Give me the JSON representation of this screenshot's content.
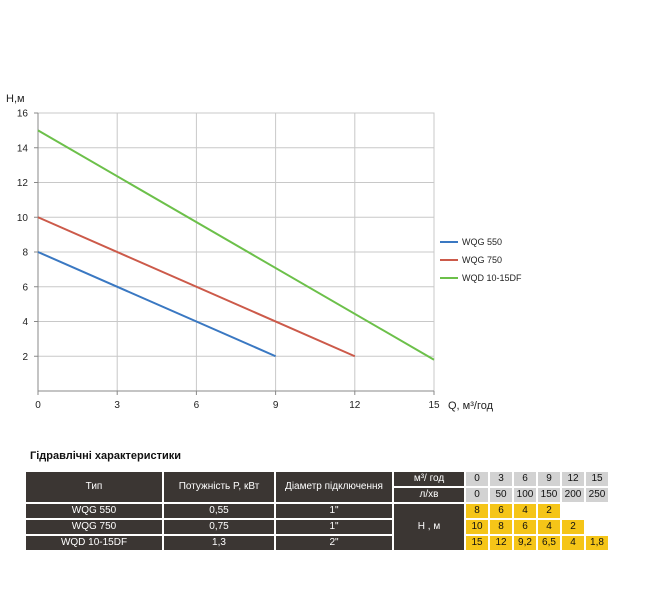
{
  "chart_data": {
    "type": "line",
    "xlabel": "Q,  м³/год",
    "ylabel": "H,м",
    "xlim": [
      0,
      15
    ],
    "ylim": [
      0,
      16
    ],
    "xticks": [
      0,
      3,
      6,
      9,
      12,
      15
    ],
    "yticks": [
      2,
      4,
      6,
      8,
      10,
      12,
      14,
      16
    ],
    "grid": true,
    "legend_position": "right",
    "series": [
      {
        "name": "WQG 550",
        "color": "#3a78c2",
        "x": [
          0,
          9
        ],
        "y": [
          8,
          2
        ]
      },
      {
        "name": "WQG 750",
        "color": "#cc5a4a",
        "x": [
          0,
          12
        ],
        "y": [
          10,
          2
        ]
      },
      {
        "name": "WQD 10-15DF",
        "color": "#6cc04a",
        "x": [
          0,
          15
        ],
        "y": [
          15,
          1.8
        ]
      }
    ]
  },
  "table": {
    "title": "Гідравлічні характеристики",
    "col_type": "Тип",
    "col_power": "Потужність  P, кВт",
    "col_diameter": "Діаметр підключення",
    "unit_m3": "м³/ год",
    "unit_lmin": "л/хв",
    "head_label": "Н , м",
    "flow_m3": [
      "0",
      "3",
      "6",
      "9",
      "12",
      "15"
    ],
    "flow_lmin": [
      "0",
      "50",
      "100",
      "150",
      "200",
      "250"
    ],
    "rows": [
      {
        "type": "WQG 550",
        "power": "0,55",
        "diameter": "1\"",
        "heads": [
          "8",
          "6",
          "4",
          "2",
          "",
          ""
        ]
      },
      {
        "type": "WQG 750",
        "power": "0,75",
        "diameter": "1\"",
        "heads": [
          "10",
          "8",
          "6",
          "4",
          "2",
          ""
        ]
      },
      {
        "type": "WQD 10-15DF",
        "power": "1,3",
        "diameter": "2\"",
        "heads": [
          "15",
          "12",
          "9,2",
          "6,5",
          "4",
          "1,8"
        ]
      }
    ]
  }
}
